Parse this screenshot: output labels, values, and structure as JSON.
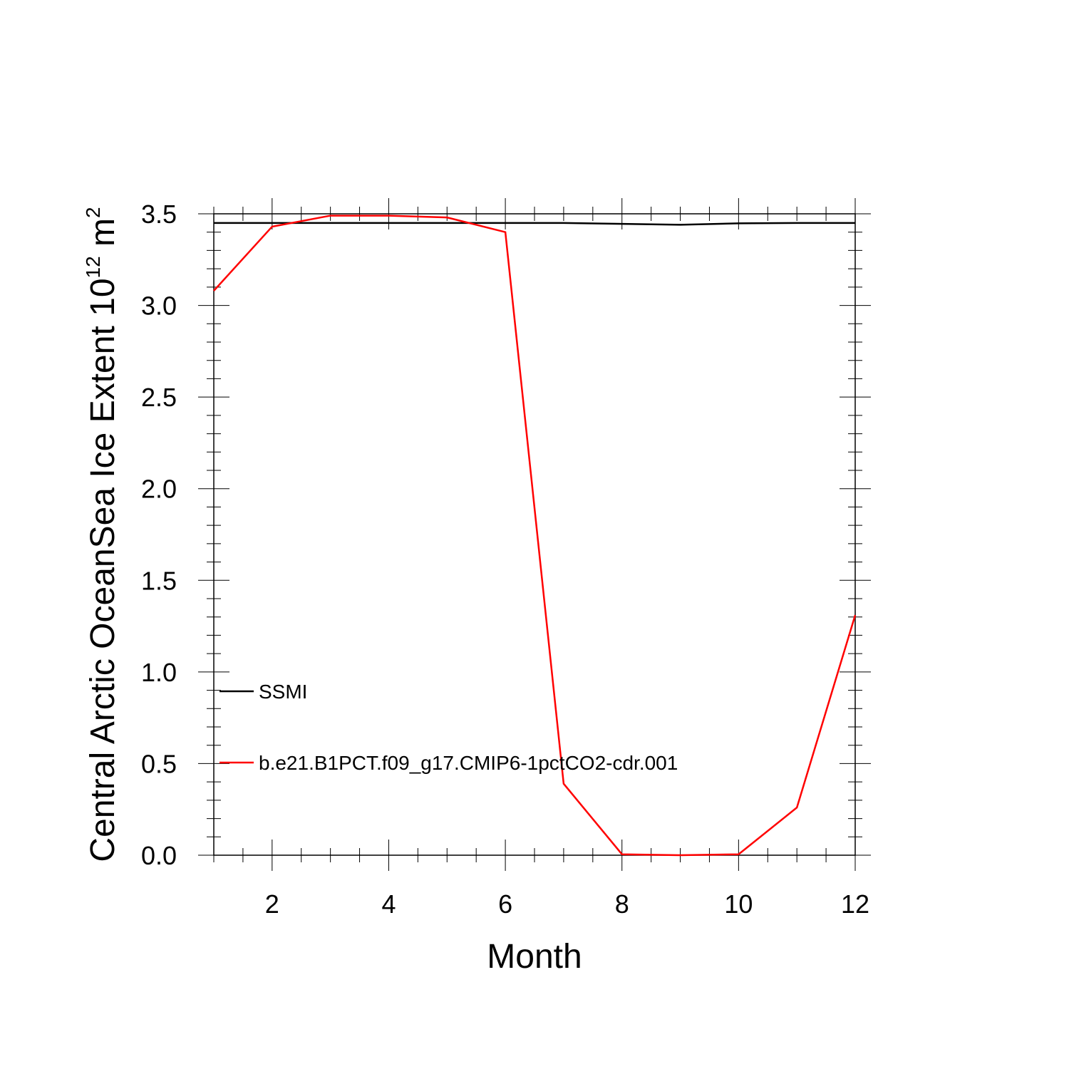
{
  "chart_data": {
    "type": "line",
    "xlabel": "Month",
    "ylabel": {
      "main": "Central Arctic OceanSea Ice Extent 10",
      "exponent": "12",
      "unit": " m",
      "unit_exponent": "2"
    },
    "xlim": [
      1,
      12
    ],
    "ylim": [
      0,
      3.5
    ],
    "xticks": [
      2,
      4,
      6,
      8,
      10,
      12
    ],
    "xtick_labels": [
      "2",
      "4",
      "6",
      "8",
      "10",
      "12"
    ],
    "yticks": [
      0,
      0.5,
      1.0,
      1.5,
      2.0,
      2.5,
      3.0,
      3.5
    ],
    "ytick_labels": [
      "0.0",
      "0.5",
      "1.0",
      "1.5",
      "2.0",
      "2.5",
      "3.0",
      "3.5"
    ],
    "grid": false,
    "legend_placement": "left",
    "x": [
      1,
      2,
      3,
      4,
      5,
      6,
      7,
      8,
      9,
      10,
      11,
      12
    ],
    "series": [
      {
        "name": "SSMI",
        "color": "#000000",
        "values": [
          3.45,
          3.45,
          3.45,
          3.45,
          3.45,
          3.45,
          3.45,
          3.445,
          3.44,
          3.448,
          3.45,
          3.45
        ]
      },
      {
        "name": "b.e21.B1PCT.f09_g17.CMIP6-1pctCO2-cdr.001",
        "color": "#ff0000",
        "values": [
          3.08,
          3.43,
          3.49,
          3.49,
          3.48,
          3.4,
          0.39,
          0.005,
          0.0,
          0.005,
          0.26,
          1.31
        ]
      }
    ]
  }
}
